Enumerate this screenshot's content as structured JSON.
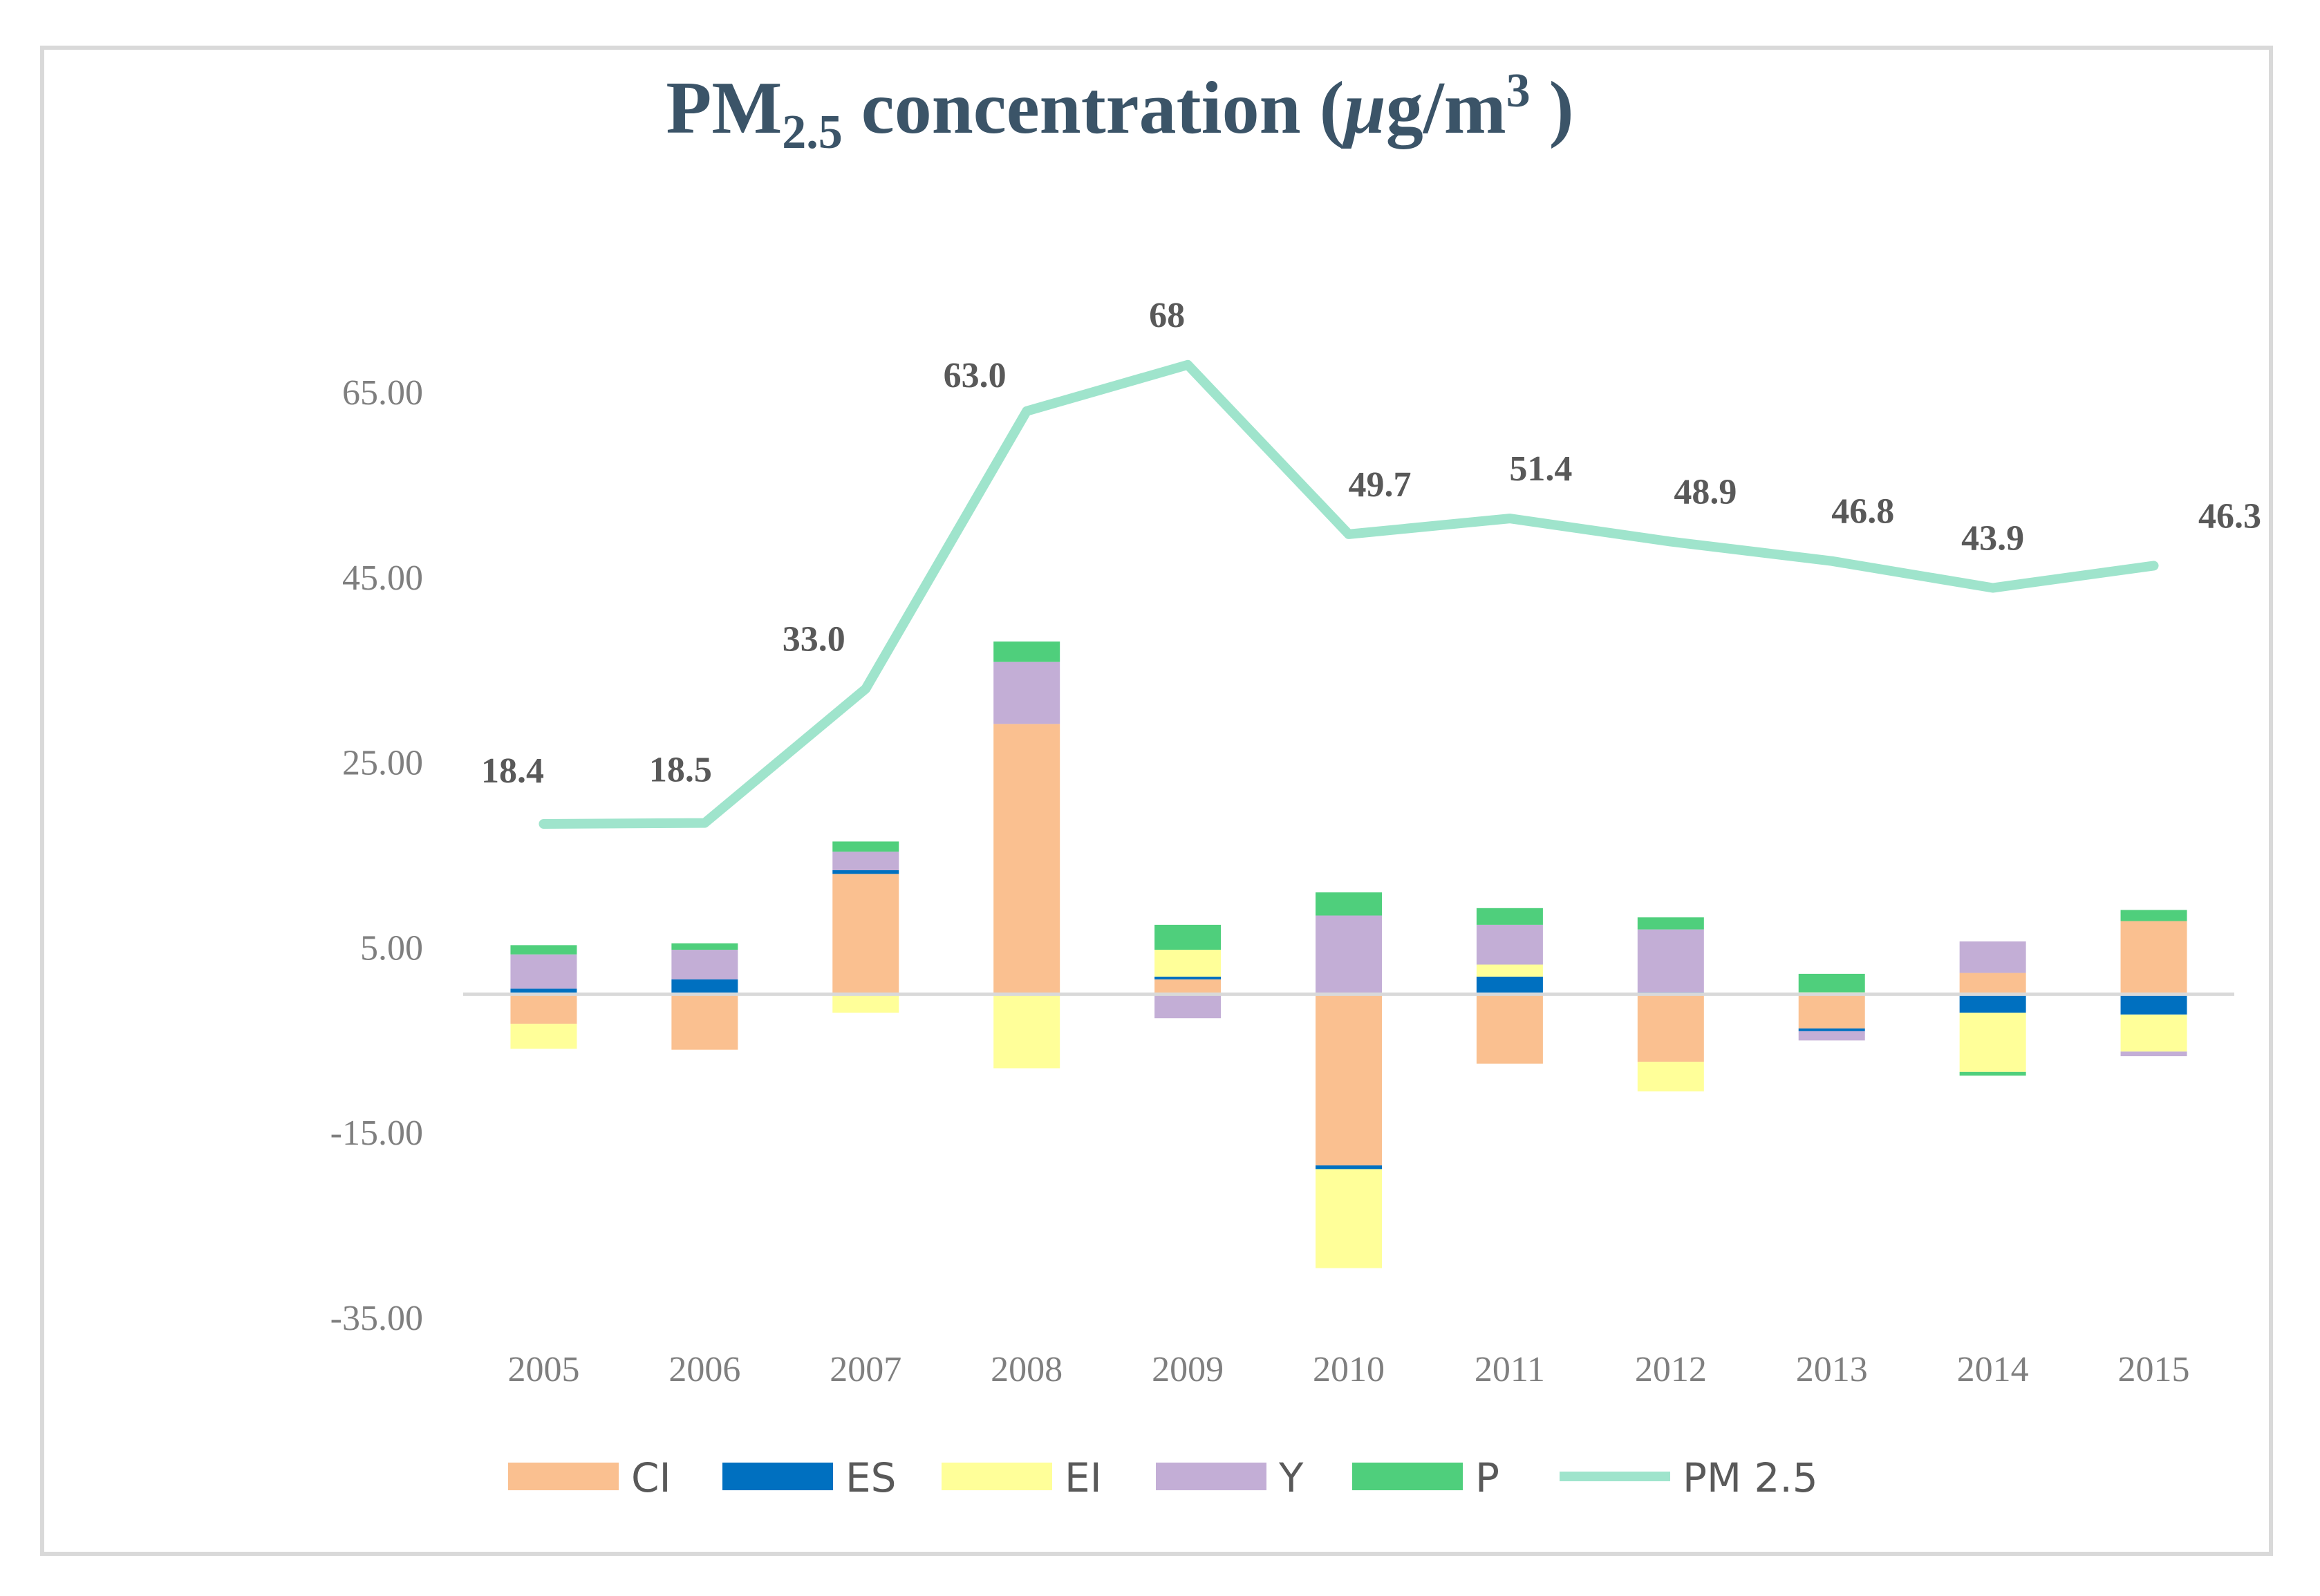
{
  "chart_data": {
    "type": "bar",
    "title_main": "PM",
    "title_sub": "2.5",
    "title_rest": " concentration (",
    "title_mu": "μ",
    "title_unit": "g/m",
    "title_sup": "3",
    "title_close": " )",
    "categories": [
      "2005",
      "2006",
      "2007",
      "2008",
      "2009",
      "2010",
      "2011",
      "2012",
      "2013",
      "2014",
      "2015"
    ],
    "y_ticks": [
      65,
      45,
      25,
      5,
      -15,
      -35
    ],
    "y_tick_labels": [
      "65.00",
      "45.00",
      "25.00",
      "5.00",
      "-15.00",
      "-35.00"
    ],
    "ylim": [
      -35,
      75
    ],
    "stacked_bars": true,
    "series": [
      {
        "name": "CI",
        "color": "#fac090",
        "values": [
          -3.2,
          -6.0,
          13.0,
          29.2,
          1.6,
          -18.5,
          -7.5,
          -7.3,
          -3.7,
          2.3,
          7.9
        ]
      },
      {
        "name": "ES",
        "color": "#0070c0",
        "values": [
          0.6,
          1.6,
          0.4,
          0,
          0.3,
          -0.4,
          1.9,
          0.2,
          -0.3,
          -2.0,
          -2.2
        ]
      },
      {
        "name": "EI",
        "color": "#ffff99",
        "values": [
          -2.7,
          0,
          -2.0,
          -8.0,
          2.9,
          -10.7,
          1.3,
          -3.2,
          0.2,
          -6.4,
          -4.0
        ]
      },
      {
        "name": "Y",
        "color": "#c3aed6",
        "values": [
          3.7,
          3.2,
          2.0,
          6.7,
          -2.6,
          8.5,
          4.3,
          6.8,
          -1.0,
          3.4,
          -0.5
        ]
      },
      {
        "name": "P",
        "color": "#4fcf7c",
        "values": [
          1.0,
          0.7,
          1.1,
          2.2,
          2.7,
          2.5,
          1.8,
          1.3,
          2.0,
          -0.4,
          1.2
        ]
      }
    ],
    "line": {
      "name": "PM 2.5",
      "color": "#9fe4cc",
      "values": [
        18.4,
        18.5,
        33.0,
        63.0,
        68.0,
        49.7,
        51.4,
        48.9,
        46.8,
        43.9,
        46.3
      ],
      "labels": [
        "18.4",
        "18.5",
        "33.0",
        "63.0",
        "68",
        "49.7",
        "51.4",
        "48.9",
        "46.8",
        "43.9",
        "46.3"
      ]
    },
    "legend": [
      "CI",
      "ES",
      "EI",
      "Y",
      "P",
      "PM 2.5"
    ],
    "legend_position": "bottom",
    "grid": false
  }
}
